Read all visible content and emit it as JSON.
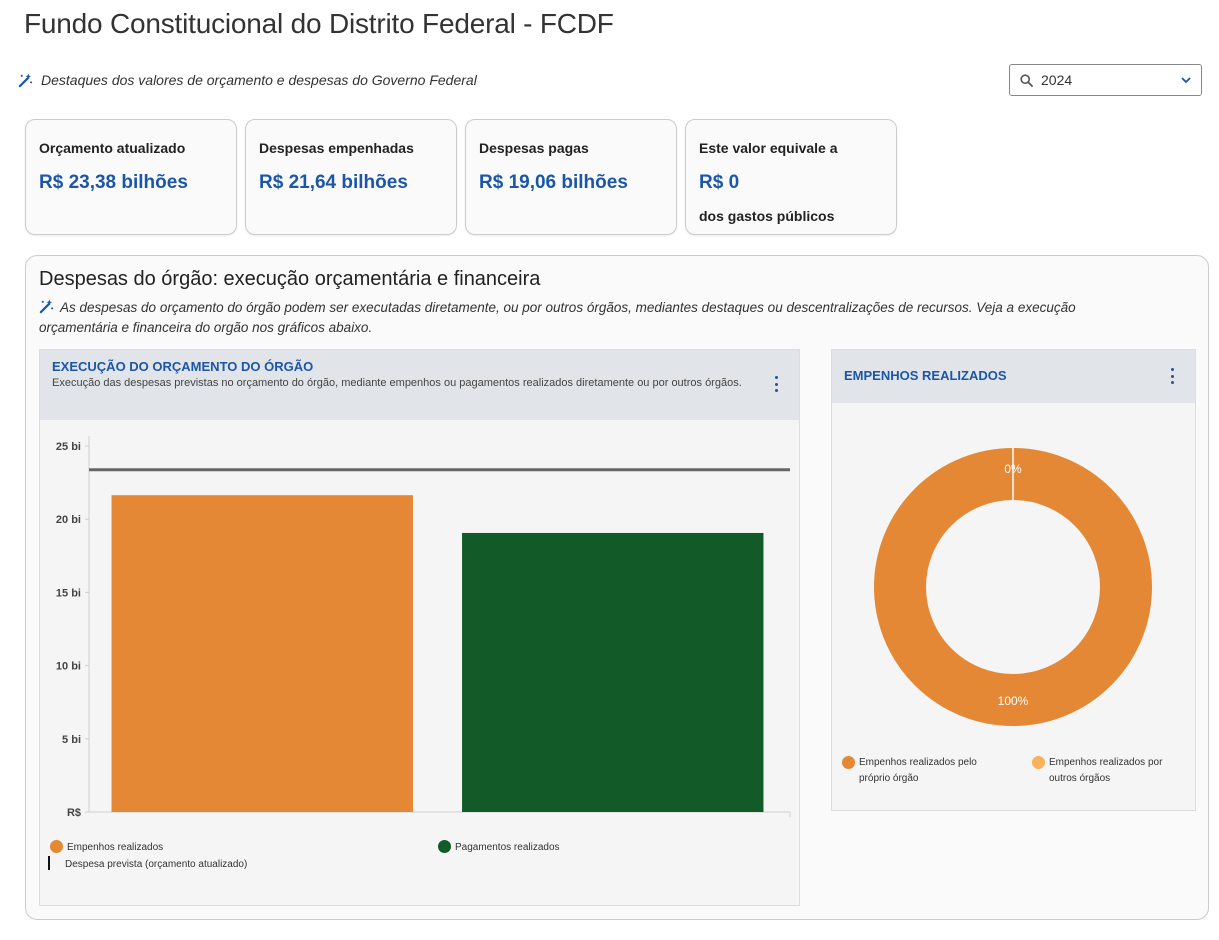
{
  "page": {
    "title": "Fundo Constitucional do Distrito Federal - FCDF",
    "subtitle": "Destaques dos valores de orçamento e despesas do Governo Federal"
  },
  "year_select": {
    "value": "2024"
  },
  "cards": [
    {
      "label": "Orçamento atualizado",
      "value": "R$ 23,38 bilhões",
      "note": ""
    },
    {
      "label": "Despesas empenhadas",
      "value": "R$ 21,64 bilhões",
      "note": ""
    },
    {
      "label": "Despesas pagas",
      "value": "R$ 19,06 bilhões",
      "note": ""
    },
    {
      "label": "Este valor equivale a",
      "value": "R$ 0",
      "note": "dos gastos públicos"
    }
  ],
  "section": {
    "title": "Despesas do órgão: execução orçamentária e financeira",
    "description": "As despesas do orçamento do órgão podem ser executadas diretamente, ou por outros órgãos, mediantes destaques ou descentralizações de recursos. Veja a execução orçamentária e financeira do orgão nos gráficos abaixo."
  },
  "colors": {
    "accent": "#1c56a8",
    "orange": "#e48835",
    "dark_green": "#125a28",
    "light_orange": "#f6b35c",
    "reference_line": "#666666"
  },
  "chart_data": [
    {
      "type": "bar",
      "title": "EXECUÇÃO DO ORÇAMENTO DO ÓRGÃO",
      "subtitle": "Execução das despesas previstas no orçamento do órgão, mediante empenhos ou pagamentos realizados diretamente ou por outros órgãos.",
      "series": [
        {
          "name": "Empenhos realizados",
          "value": 21.64,
          "color": "#e48835"
        },
        {
          "name": "Pagamentos realizados",
          "value": 19.06,
          "color": "#125a28"
        }
      ],
      "reference_line": {
        "name": "Despesa prevista (orçamento atualizado)",
        "value": 23.38
      },
      "yticks": [
        {
          "value": 0,
          "label": "R$"
        },
        {
          "value": 5,
          "label": "5 bi"
        },
        {
          "value": 10,
          "label": "10 bi"
        },
        {
          "value": 15,
          "label": "15 bi"
        },
        {
          "value": 20,
          "label": "20 bi"
        },
        {
          "value": 25,
          "label": "25 bi"
        }
      ],
      "ylim": [
        0,
        25
      ],
      "grid": false,
      "legend_position": "bottom"
    },
    {
      "type": "pie",
      "title": "EMPENHOS REALIZADOS",
      "slices": [
        {
          "name": "Empenhos realizados pelo próprio órgão",
          "value": 100,
          "label": "100%",
          "color": "#e48835"
        },
        {
          "name": "Empenhos realizados por outros órgãos",
          "value": 0,
          "label": "0%",
          "color": "#f6b35c"
        }
      ],
      "donut": true,
      "legend_position": "bottom"
    }
  ]
}
